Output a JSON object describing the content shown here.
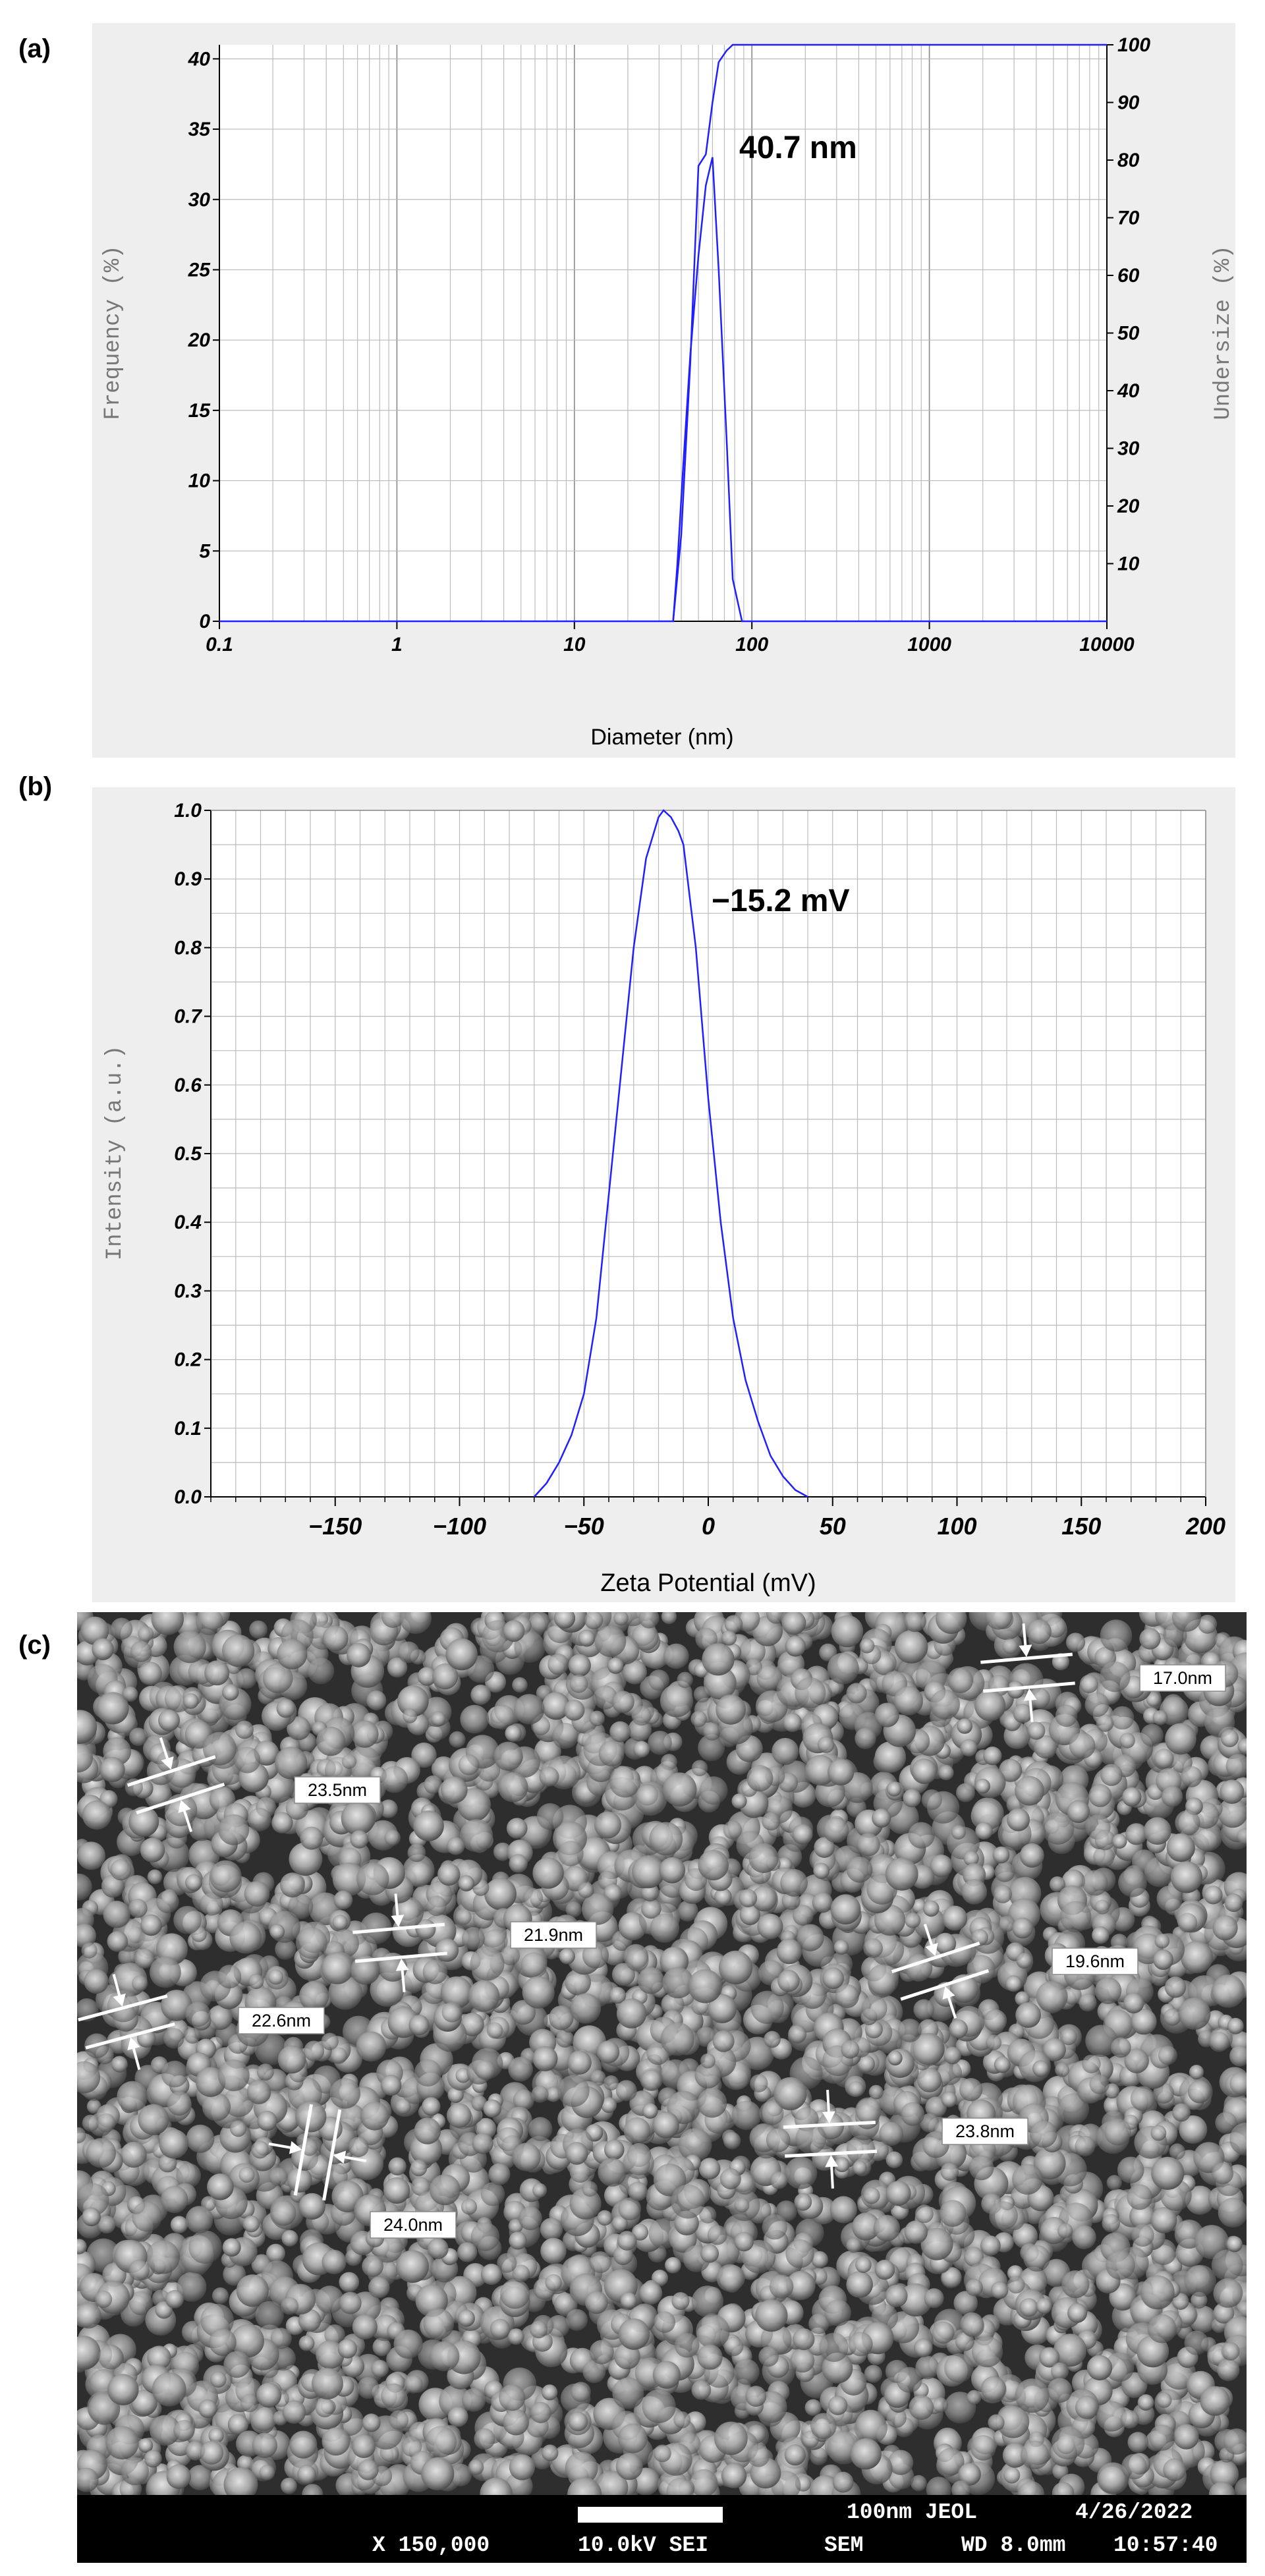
{
  "panels": {
    "a": "(a)",
    "b": "(b)",
    "c": "(c)"
  },
  "chart_data": [
    {
      "type": "line",
      "x_scale": "log",
      "xlabel": "Diameter (nm)",
      "ylabel": "Frequency (%)",
      "y2label": "Undersize (%)",
      "xlim": [
        0.1,
        10000
      ],
      "ylim": [
        0,
        41
      ],
      "y2lim": [
        0,
        100
      ],
      "xticks": [
        0.1,
        1,
        10,
        100,
        1000,
        10000
      ],
      "xtick_labels": [
        "0.1",
        "1",
        "10",
        "100",
        "1000",
        "10000"
      ],
      "yticks": [
        0,
        5,
        10,
        15,
        20,
        25,
        30,
        35,
        40
      ],
      "y2ticks": [
        10,
        20,
        30,
        40,
        50,
        60,
        70,
        80,
        90,
        100
      ],
      "grid": true,
      "annotation": "40.7 nm",
      "line_color": "#2020ff",
      "series": [
        {
          "axis": "left",
          "x": [
            0.1,
            0.3,
            36,
            38,
            41,
            45,
            50,
            55,
            60,
            65,
            72,
            78,
            88,
            10000
          ],
          "y": [
            0,
            0,
            0,
            4,
            11,
            19,
            26,
            31,
            33,
            25,
            13,
            3,
            0,
            0
          ]
        },
        {
          "axis": "right",
          "x": [
            36,
            40,
            45,
            50,
            55,
            60,
            65,
            72,
            78,
            10000
          ],
          "y": [
            0,
            15,
            45,
            79,
            81,
            90,
            97,
            99,
            100,
            100
          ]
        }
      ]
    },
    {
      "type": "line",
      "xlabel": "Zeta Potential (mV)",
      "ylabel": "Intensity (a.u.)",
      "xlim": [
        -200,
        200
      ],
      "ylim": [
        0,
        1.0
      ],
      "xticks": [
        -150,
        -100,
        -50,
        0,
        50,
        100,
        150,
        200
      ],
      "xtick_labels": [
        "−150",
        "−100",
        "−50",
        "0",
        "50",
        "100",
        "150",
        "200"
      ],
      "yticks": [
        0,
        0.1,
        0.2,
        0.3,
        0.4,
        0.5,
        0.6,
        0.7,
        0.8,
        0.9,
        1.0
      ],
      "ytick_labels": [
        "0.0",
        "0.1",
        "0.2",
        "0.3",
        "0.4",
        "0.5",
        "0.6",
        "0.7",
        "0.8",
        "0.9",
        "1.0"
      ],
      "grid": true,
      "annotation": "−15.2 mV",
      "line_color": "#2020ff",
      "series": [
        {
          "x": [
            -70,
            -65,
            -60,
            -55,
            -50,
            -45,
            -40,
            -35,
            -30,
            -25,
            -20,
            -18,
            -15,
            -12,
            -10,
            -5,
            0,
            5,
            10,
            15,
            20,
            25,
            30,
            35,
            40
          ],
          "y": [
            0,
            0.02,
            0.05,
            0.09,
            0.15,
            0.26,
            0.44,
            0.62,
            0.8,
            0.93,
            0.99,
            1.0,
            0.99,
            0.97,
            0.95,
            0.8,
            0.58,
            0.4,
            0.26,
            0.17,
            0.11,
            0.06,
            0.03,
            0.01,
            0.0
          ]
        }
      ]
    }
  ],
  "sem": {
    "measurements": [
      "23.5nm",
      "21.9nm",
      "22.6nm",
      "24.0nm",
      "17.0nm",
      "19.6nm",
      "23.8nm"
    ],
    "info": {
      "magnification": "X 150,000",
      "voltage": "10.0kV SEI",
      "scale": "100nm JEOL",
      "mode": "SEM",
      "wd": "WD 8.0mm",
      "date": "4/26/2022",
      "time": "10:57:40"
    }
  }
}
